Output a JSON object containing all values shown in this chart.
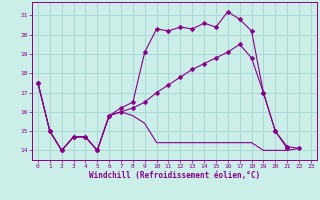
{
  "background_color": "#cceee8",
  "grid_color": "#aad8d2",
  "line_color": "#880088",
  "xlim": [
    -0.5,
    23.5
  ],
  "ylim": [
    13.5,
    21.7
  ],
  "yticks": [
    14,
    15,
    16,
    17,
    18,
    19,
    20,
    21
  ],
  "xticks": [
    0,
    1,
    2,
    3,
    4,
    5,
    6,
    7,
    8,
    9,
    10,
    11,
    12,
    13,
    14,
    15,
    16,
    17,
    18,
    19,
    20,
    21,
    22,
    23
  ],
  "xlabel": "Windchill (Refroidissement éolien,°C)",
  "series": [
    {
      "x": [
        0,
        1,
        2,
        3,
        4,
        5,
        6,
        7,
        8,
        9,
        10,
        11,
        12,
        13,
        14,
        15,
        16,
        17,
        18,
        19,
        20,
        21,
        22
      ],
      "y": [
        17.5,
        15.0,
        14.0,
        14.7,
        14.7,
        14.0,
        15.8,
        16.0,
        15.8,
        15.4,
        14.4,
        14.4,
        14.4,
        14.4,
        14.4,
        14.4,
        14.4,
        14.4,
        14.4,
        14.0,
        14.0,
        14.0,
        14.1
      ],
      "marker": false
    },
    {
      "x": [
        0,
        1,
        2,
        3,
        4,
        5,
        6,
        7,
        8,
        9,
        10,
        11,
        12,
        13,
        14,
        15,
        16,
        17,
        18,
        19,
        20,
        21
      ],
      "y": [
        17.5,
        15.0,
        14.0,
        14.7,
        14.7,
        14.0,
        15.8,
        16.2,
        16.5,
        19.1,
        20.3,
        20.2,
        20.4,
        20.3,
        20.6,
        20.4,
        21.2,
        20.8,
        20.2,
        17.0,
        15.0,
        14.1
      ],
      "marker": true
    },
    {
      "x": [
        0,
        1,
        2,
        3,
        4,
        5,
        6,
        7,
        8,
        9,
        10,
        11,
        12,
        13,
        14,
        15,
        16,
        17,
        18,
        19,
        20,
        21,
        22
      ],
      "y": [
        17.5,
        15.0,
        14.0,
        14.7,
        14.7,
        14.0,
        15.8,
        16.0,
        16.2,
        16.5,
        17.0,
        17.4,
        17.8,
        18.2,
        18.5,
        18.8,
        19.1,
        19.5,
        18.8,
        17.0,
        15.0,
        14.2,
        14.1
      ],
      "marker": true
    }
  ]
}
